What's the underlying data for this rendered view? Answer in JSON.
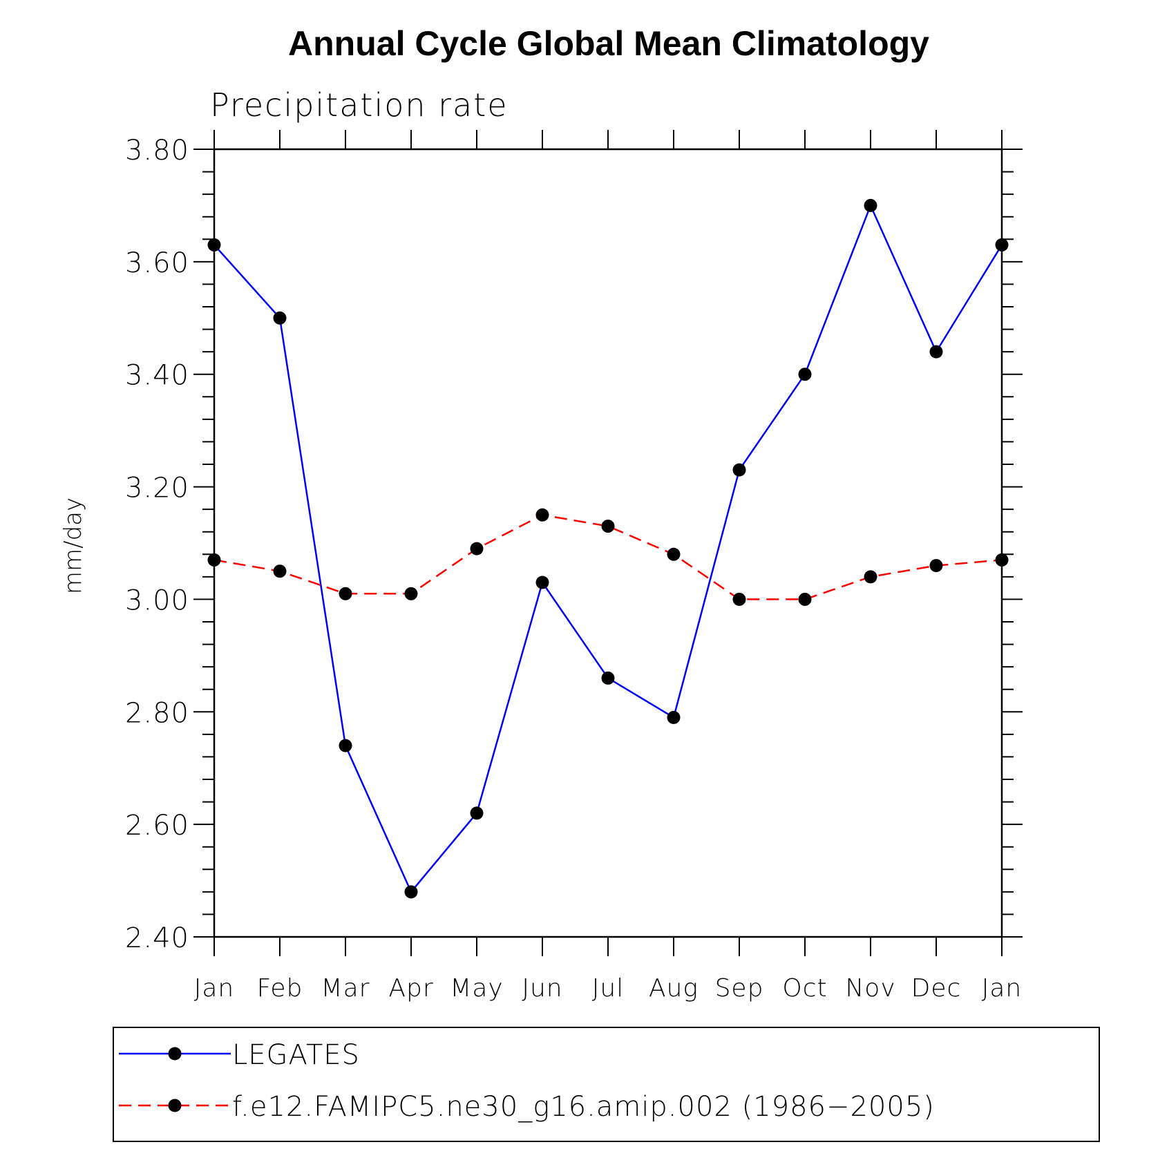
{
  "chart_data": {
    "type": "line",
    "title": "Annual Cycle Global Mean Climatology",
    "subtitle": "Precipitation rate",
    "ylabel": "mm/day",
    "xlabel": "",
    "categories": [
      "Jan",
      "Feb",
      "Mar",
      "Apr",
      "May",
      "Jun",
      "Jul",
      "Aug",
      "Sep",
      "Oct",
      "Nov",
      "Dec",
      "Jan"
    ],
    "ylim": [
      2.4,
      3.8
    ],
    "yticks": [
      "2.40",
      "2.60",
      "2.80",
      "3.00",
      "3.20",
      "3.40",
      "3.60",
      "3.80"
    ],
    "grid": false,
    "legend_position": "bottom",
    "series": [
      {
        "name": "LEGATES",
        "color": "#0000ff",
        "dash": "solid",
        "marker": "filled-circle",
        "values": [
          3.63,
          3.5,
          2.74,
          2.48,
          2.62,
          3.03,
          2.86,
          2.79,
          3.23,
          3.4,
          3.7,
          3.44,
          3.63
        ]
      },
      {
        "name": "f.e12.FAMIPC5.ne30_g16.amip.002 (1986−2005)",
        "color": "#ff0000",
        "dash": "dashed",
        "marker": "filled-circle",
        "values": [
          3.07,
          3.05,
          3.01,
          3.01,
          3.09,
          3.15,
          3.13,
          3.08,
          3.0,
          3.0,
          3.04,
          3.06,
          3.07
        ]
      }
    ]
  }
}
